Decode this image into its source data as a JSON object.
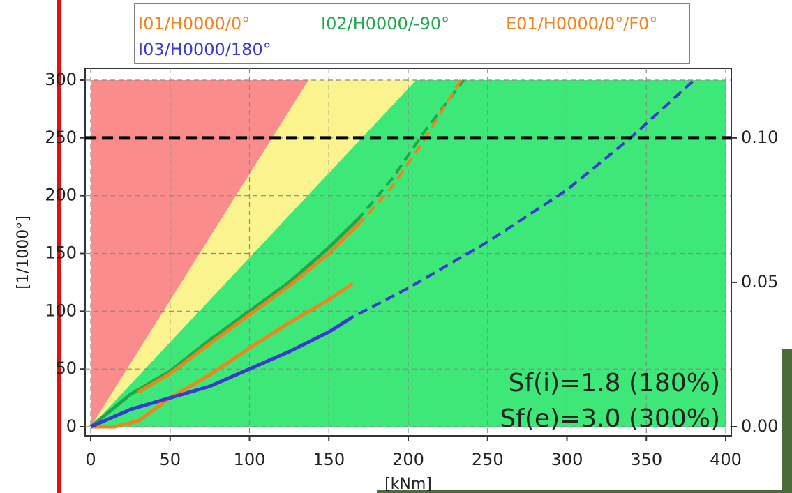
{
  "chart_data": {
    "type": "line",
    "ylabel": "[1/1000°]",
    "xlabel": "[kNm]",
    "xlim": [
      0,
      400
    ],
    "xticks": [
      0,
      50,
      100,
      150,
      200,
      250,
      300,
      350,
      400
    ],
    "ylim": [
      0,
      300
    ],
    "yticks": [
      0,
      50,
      100,
      150,
      200,
      250,
      300
    ],
    "y2lim": [
      0,
      0.12
    ],
    "y2ticks": [
      {
        "value": 0,
        "label": "0.00"
      },
      {
        "value": 0.05,
        "label": "0.05"
      },
      {
        "value": 0.1,
        "label": "0.10"
      }
    ],
    "grid": true,
    "threshold": 250,
    "annotations": [
      "Sf(i)=1.8 (180%)",
      "Sf(e)=3.0 (300%)"
    ],
    "series": [
      {
        "name": "I01/H0000/0°",
        "color": "#f0841c",
        "x": [
          0,
          15,
          30,
          50,
          75,
          100,
          125,
          150,
          165
        ],
        "values": [
          0,
          0,
          5,
          25,
          45,
          68,
          90,
          110,
          124
        ]
      },
      {
        "name": "I02/H0000/-90°",
        "color": "#1ea84a",
        "dashed_from_x": 170,
        "x": [
          0,
          25,
          50,
          75,
          100,
          125,
          150,
          170,
          190,
          210,
          235
        ],
        "values": [
          0,
          28,
          48,
          75,
          100,
          125,
          155,
          182,
          215,
          255,
          300
        ]
      },
      {
        "name": "E01/H0000/0°/F0°",
        "color": "#f0841c",
        "dashed_from_x": 170,
        "x": [
          30,
          50,
          75,
          100,
          125,
          150,
          170,
          190,
          210,
          233
        ],
        "values": [
          30,
          46,
          72,
          97,
          122,
          150,
          177,
          208,
          248,
          300
        ]
      },
      {
        "name": "I03/H0000/180°",
        "color": "#3a3ad0",
        "dashed_from_x": 165,
        "x": [
          0,
          25,
          50,
          75,
          100,
          125,
          150,
          165,
          200,
          250,
          300,
          340,
          380
        ],
        "values": [
          0,
          15,
          25,
          35,
          50,
          65,
          82,
          95,
          120,
          160,
          205,
          250,
          300
        ]
      }
    ]
  }
}
